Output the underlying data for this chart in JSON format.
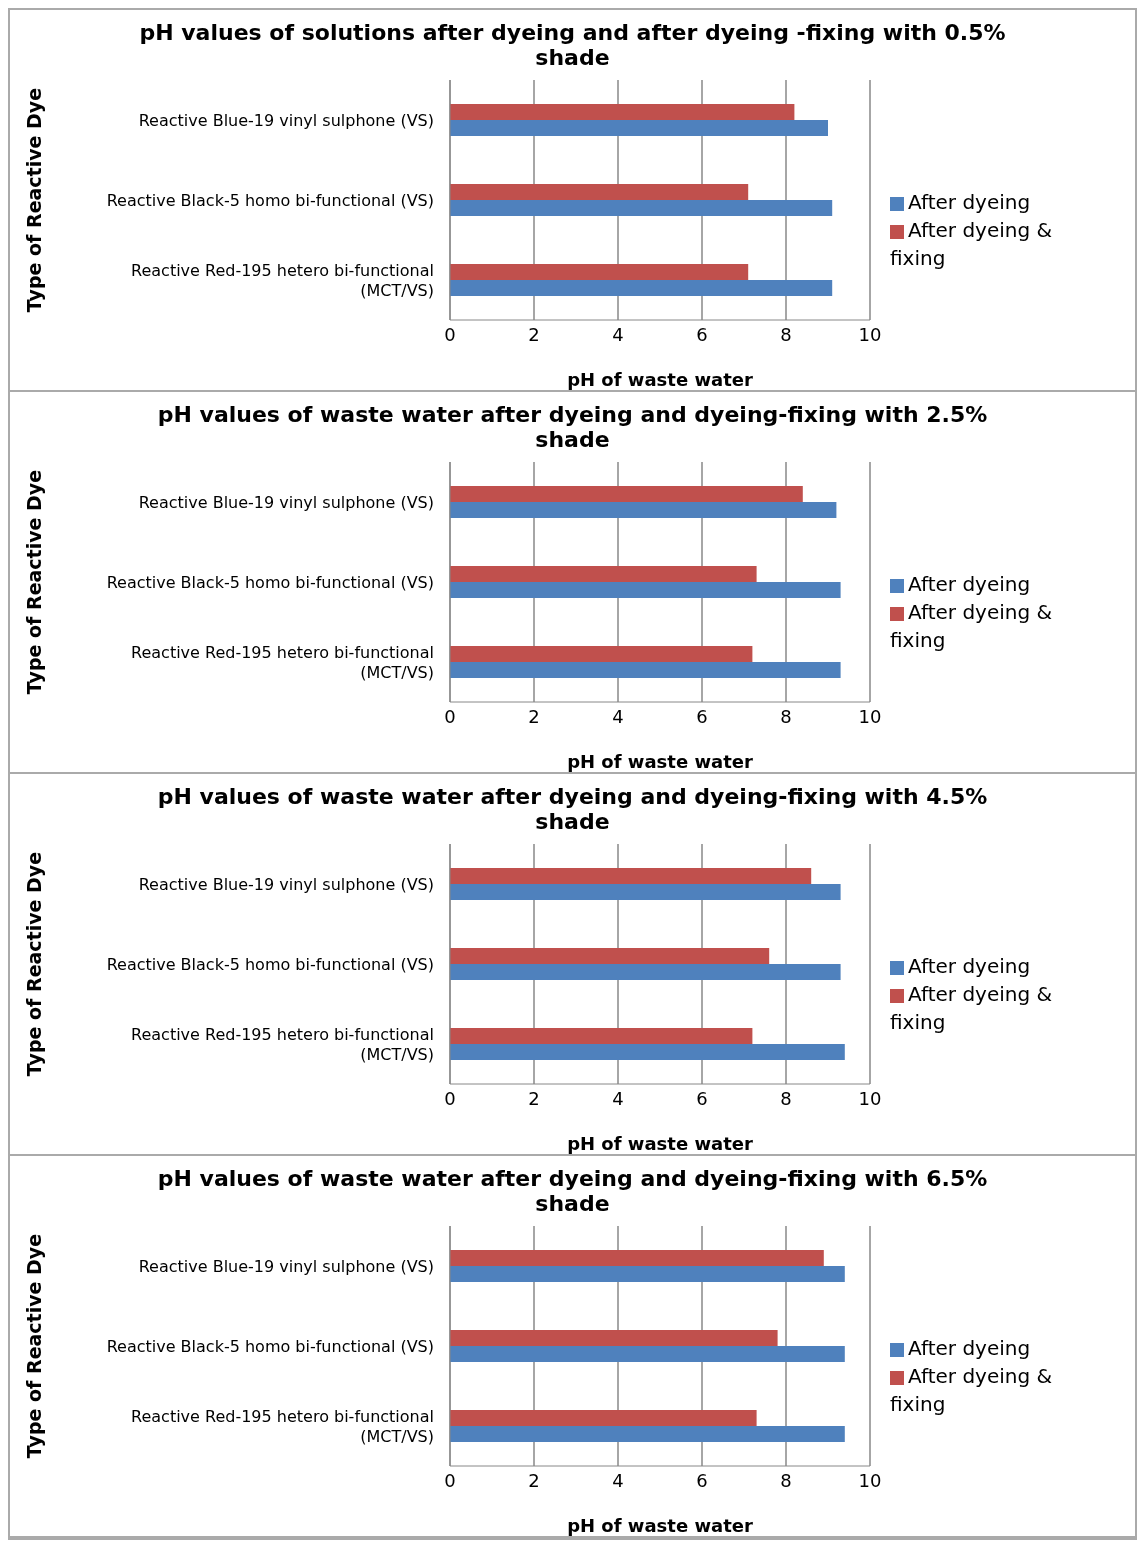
{
  "chart_data": [
    {
      "type": "bar",
      "orientation": "horizontal",
      "title": "pH values of solutions after dyeing and after dyeing -fixing with 0.5% shade",
      "xlabel": "pH of waste water",
      "ylabel": "Type of Reactive Dye",
      "categories": [
        "Reactive Blue-19 vinyl sulphone (VS)",
        "Reactive Black-5 homo bi-functional (VS)",
        "Reactive Red-195 hetero bi-functional (MCT/VS)"
      ],
      "series": [
        {
          "name": "After dyeing & fixing",
          "color": "#c0504d",
          "values": [
            8.2,
            7.1,
            7.1
          ]
        },
        {
          "name": "After dyeing",
          "color": "#4f81bd",
          "values": [
            9.0,
            9.1,
            9.1
          ]
        }
      ],
      "xlim": [
        0,
        10
      ],
      "xticks": [
        0,
        2,
        4,
        6,
        8,
        10
      ],
      "grid": "x",
      "legend": "right"
    },
    {
      "type": "bar",
      "orientation": "horizontal",
      "title": "pH values of waste water after dyeing and dyeing-fixing with 2.5% shade",
      "xlabel": "pH of waste water",
      "ylabel": "Type of Reactive Dye",
      "categories": [
        "Reactive Blue-19 vinyl sulphone (VS)",
        "Reactive Black-5 homo bi-functional (VS)",
        "Reactive Red-195 hetero bi-functional (MCT/VS)"
      ],
      "series": [
        {
          "name": "After dyeing & fixing",
          "color": "#c0504d",
          "values": [
            8.4,
            7.3,
            7.2
          ]
        },
        {
          "name": "After dyeing",
          "color": "#4f81bd",
          "values": [
            9.2,
            9.3,
            9.3
          ]
        }
      ],
      "xlim": [
        0,
        10
      ],
      "xticks": [
        0,
        2,
        4,
        6,
        8,
        10
      ],
      "grid": "x",
      "legend": "right"
    },
    {
      "type": "bar",
      "orientation": "horizontal",
      "title": "pH values of waste water after dyeing and dyeing-fixing with 4.5% shade",
      "xlabel": "pH of waste water",
      "ylabel": "Type of Reactive Dye",
      "categories": [
        "Reactive Blue-19 vinyl sulphone (VS)",
        "Reactive Black-5 homo bi-functional (VS)",
        "Reactive Red-195 hetero bi-functional (MCT/VS)"
      ],
      "series": [
        {
          "name": "After dyeing & fixing",
          "color": "#c0504d",
          "values": [
            8.6,
            7.6,
            7.2
          ]
        },
        {
          "name": "After dyeing",
          "color": "#4f81bd",
          "values": [
            9.3,
            9.3,
            9.4
          ]
        }
      ],
      "xlim": [
        0,
        10
      ],
      "xticks": [
        0,
        2,
        4,
        6,
        8,
        10
      ],
      "grid": "x",
      "legend": "right"
    },
    {
      "type": "bar",
      "orientation": "horizontal",
      "title": "pH values of waste water after dyeing and dyeing-fixing with 6.5% shade",
      "xlabel": "pH of waste water",
      "ylabel": "Type of Reactive Dye",
      "categories": [
        "Reactive Blue-19 vinyl sulphone (VS)",
        "Reactive Black-5 homo bi-functional (VS)",
        "Reactive Red-195 hetero bi-functional (MCT/VS)"
      ],
      "series": [
        {
          "name": "After dyeing & fixing",
          "color": "#c0504d",
          "values": [
            8.9,
            7.8,
            7.3
          ]
        },
        {
          "name": "After dyeing",
          "color": "#4f81bd",
          "values": [
            9.4,
            9.4,
            9.4
          ]
        }
      ],
      "xlim": [
        0,
        10
      ],
      "xticks": [
        0,
        2,
        4,
        6,
        8,
        10
      ],
      "grid": "x",
      "legend": "right"
    }
  ]
}
